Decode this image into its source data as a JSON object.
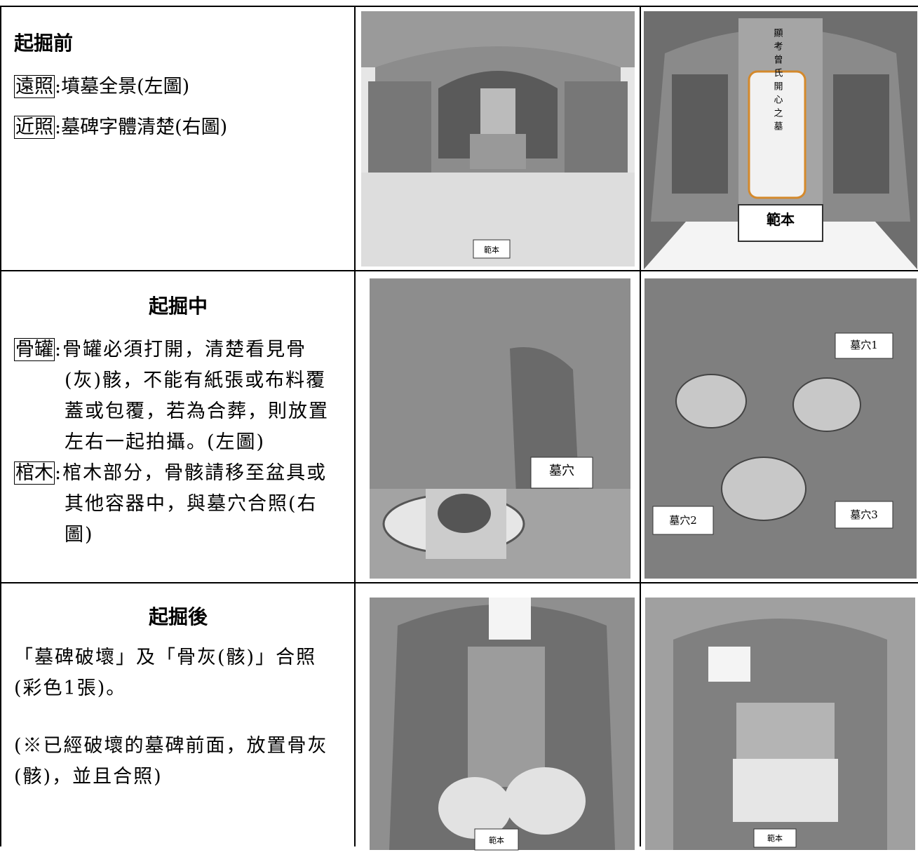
{
  "rows": [
    {
      "heading": "起掘前",
      "items": [
        {
          "tag": "遠照",
          "text": ":墳墓全景(左圖)"
        },
        {
          "tag": "近照",
          "text": ":墓碑字體清楚(右圖)"
        }
      ],
      "left_image": {
        "labels": [
          "範本"
        ]
      },
      "right_image": {
        "labels": [
          "顯考曾氏開心之墓",
          "範本"
        ]
      }
    },
    {
      "heading": "起掘中",
      "items": [
        {
          "tag": "骨罐",
          "text": ":骨罐必須打開，清楚看見骨(灰)骸，不能有紙張或布料覆蓋或包覆，若為合葬，則放置左右一起拍攝。(左圖)"
        },
        {
          "tag": "棺木",
          "text": ":棺木部分，骨骸請移至盆具或其他容器中，與墓穴合照(右圖)"
        }
      ],
      "left_image": {
        "labels": [
          "墓穴"
        ]
      },
      "right_image": {
        "labels": [
          "墓穴1",
          "墓穴2",
          "墓穴3"
        ]
      }
    },
    {
      "heading": "起掘後",
      "paragraphs": [
        "「墓碑破壞」及「骨灰(骸)」合照(彩色1張)。",
        "(※已經破壞的墓碑前面，放置骨灰(骸)，並且合照)"
      ],
      "left_image": {
        "labels": [
          "範本"
        ]
      },
      "right_image": {
        "labels": [
          "範本"
        ]
      }
    }
  ]
}
